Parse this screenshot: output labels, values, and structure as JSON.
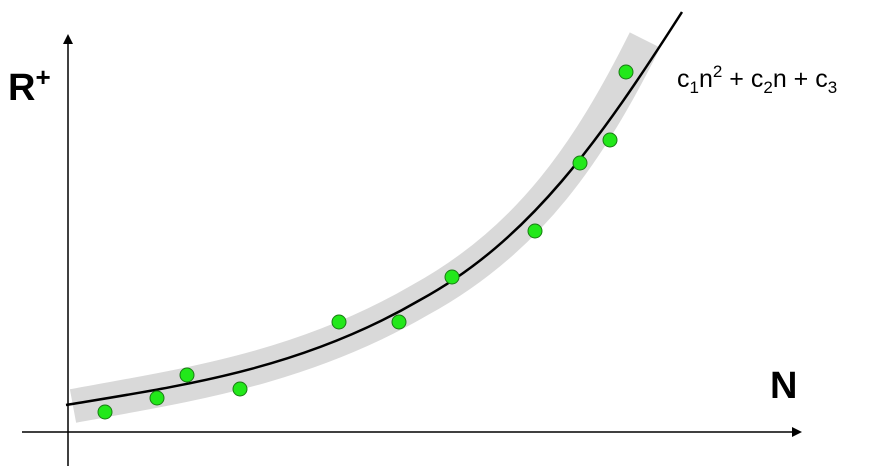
{
  "y_axis": {
    "label": "R",
    "label_superscript": "+"
  },
  "x_axis": {
    "label": "N"
  },
  "formula": {
    "c1": "c",
    "c1_sub": "1",
    "n1": "n",
    "n1_sup": "2",
    "plus1": " + ",
    "c2": "c",
    "c2_sub": "2",
    "n2": "n",
    "plus2": " + ",
    "c3": "c",
    "c3_sub": "3"
  },
  "colors": {
    "points": "#22e81a",
    "point_stroke": "#1a7a14",
    "band": "#d9d9d9",
    "curve": "#000000",
    "axes": "#000000"
  }
}
